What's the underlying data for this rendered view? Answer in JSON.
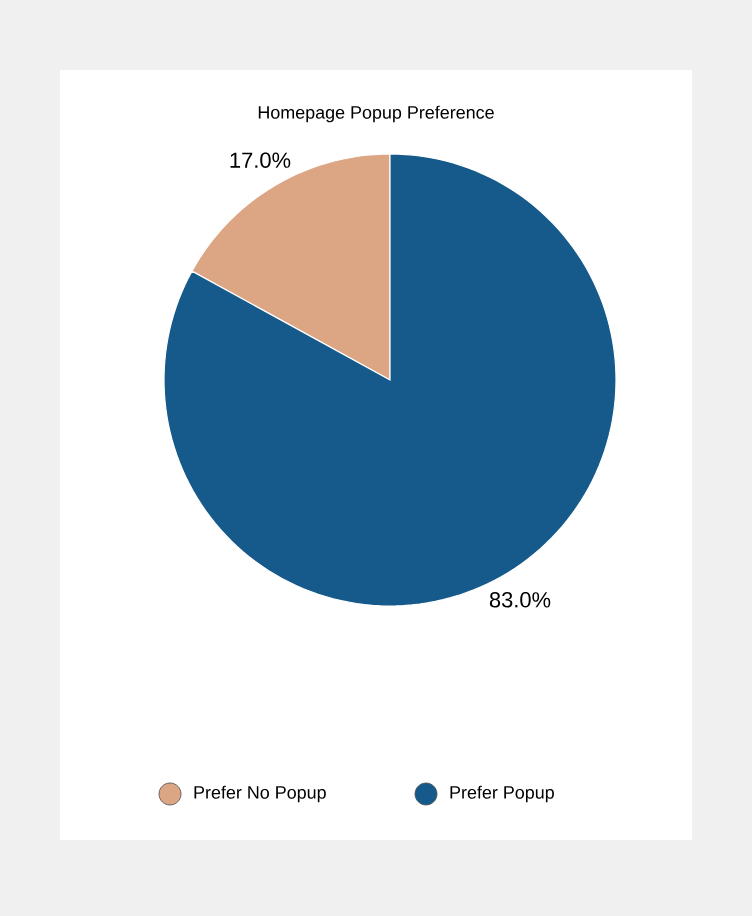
{
  "chart_data": {
    "type": "pie",
    "title": "Homepage Popup Preference",
    "categories": [
      "Prefer No Popup",
      "Prefer Popup"
    ],
    "values": [
      17.0,
      83.0
    ],
    "colors": [
      "#dca584",
      "#155a8a"
    ],
    "value_labels": [
      "17.0%",
      "83.0%"
    ],
    "legend": "bottom"
  }
}
